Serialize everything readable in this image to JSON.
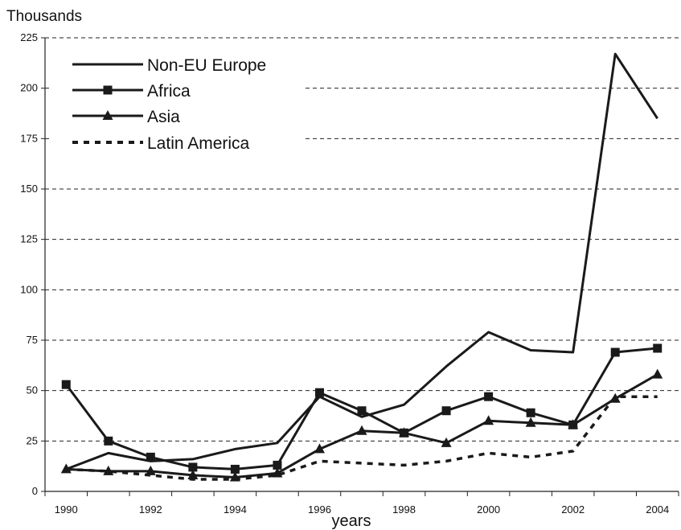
{
  "chart_data": {
    "type": "line",
    "title": "",
    "ylabel": "Thousands",
    "xlabel": "years",
    "ylim": [
      0,
      225
    ],
    "yticks": [
      0,
      25,
      50,
      75,
      100,
      125,
      150,
      175,
      200,
      225
    ],
    "x": [
      1990,
      1991,
      1992,
      1993,
      1994,
      1995,
      1996,
      1997,
      1998,
      1999,
      2000,
      2001,
      2002,
      2003,
      2004
    ],
    "xtick_labels": [
      "1990",
      "1992",
      "1994",
      "1996",
      "1998",
      "2000",
      "2002",
      "2004"
    ],
    "grid": "horizontal dashed",
    "legend_position": "top-left",
    "series": [
      {
        "name": "Non-EU Europe",
        "style": "solid",
        "marker": "none",
        "color": "#1a1a1a",
        "values": [
          11,
          19,
          15,
          16,
          21,
          24,
          47,
          37,
          43,
          62,
          79,
          70,
          69,
          217,
          185
        ]
      },
      {
        "name": "Africa",
        "style": "solid",
        "marker": "square",
        "color": "#1a1a1a",
        "values": [
          53,
          25,
          17,
          12,
          11,
          13,
          49,
          40,
          29,
          40,
          47,
          39,
          33,
          69,
          71
        ]
      },
      {
        "name": "Asia",
        "style": "solid",
        "marker": "triangle",
        "color": "#1a1a1a",
        "values": [
          11,
          10,
          10,
          8,
          7,
          9,
          21,
          30,
          29,
          24,
          35,
          34,
          33,
          46,
          58
        ]
      },
      {
        "name": "Latin America",
        "style": "dotted",
        "marker": "none",
        "color": "#1a1a1a",
        "values": [
          11,
          10,
          8,
          6,
          6,
          8,
          15,
          14,
          13,
          15,
          19,
          17,
          20,
          47,
          47
        ]
      }
    ]
  }
}
